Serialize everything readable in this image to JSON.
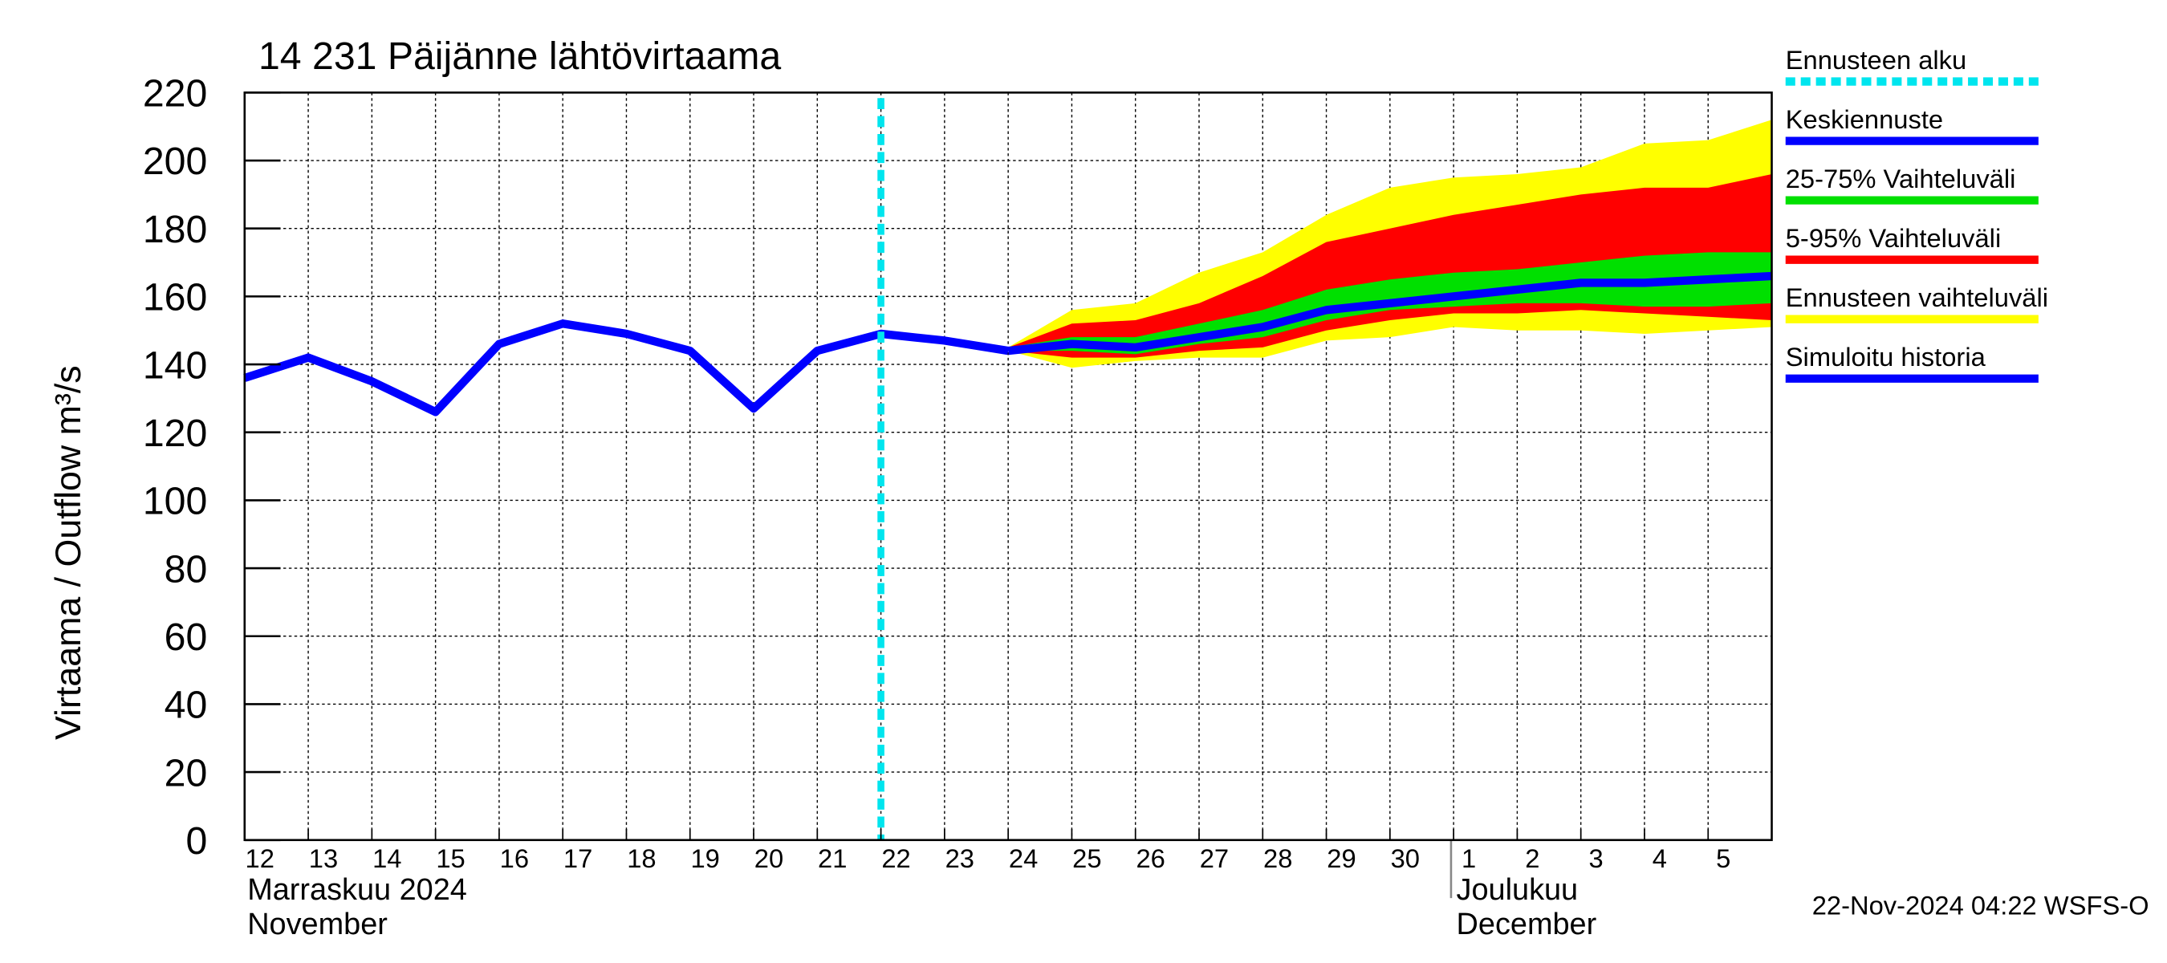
{
  "chart_data": {
    "type": "line",
    "title": "14 231 Päijänne lähtövirtaama",
    "y_label": "Virtaama / Outflow    m³/s",
    "categories": [
      "12",
      "13",
      "14",
      "15",
      "16",
      "17",
      "18",
      "19",
      "20",
      "21",
      "22",
      "23",
      "24",
      "25",
      "26",
      "27",
      "28",
      "29",
      "30",
      "1",
      "2",
      "3",
      "4",
      "5",
      null
    ],
    "month_labels": [
      {
        "index": 0,
        "lines": [
          "Marraskuu 2024",
          "November"
        ]
      },
      {
        "index": 19,
        "lines": [
          "Joulukuu",
          "December"
        ]
      }
    ],
    "ylim": [
      0,
      220
    ],
    "yticks": [
      0,
      20,
      40,
      60,
      80,
      100,
      120,
      140,
      160,
      180,
      200,
      220
    ],
    "grid": true,
    "forecast_start": {
      "name": "Ennusteen alku",
      "index": 10,
      "color": "#00e5ee"
    },
    "series": [
      {
        "name": "Keskiennuste",
        "color": "#0000ff",
        "values": [
          null,
          null,
          null,
          null,
          null,
          null,
          null,
          null,
          null,
          null,
          null,
          null,
          144,
          146,
          145,
          148,
          151,
          156,
          158,
          160,
          162,
          164,
          164,
          165,
          166
        ]
      },
      {
        "name": "Simuloitu historia",
        "color": "#0000ff",
        "values": [
          136,
          142,
          135,
          126,
          146,
          152,
          149,
          144,
          127,
          144,
          149,
          147,
          144,
          null,
          null,
          null,
          null,
          null,
          null,
          null,
          null,
          null,
          null,
          null,
          null
        ]
      }
    ],
    "bands": [
      {
        "name": "25-75% Vaihteluväli",
        "color": "#00e000",
        "upper": [
          null,
          null,
          null,
          null,
          null,
          null,
          null,
          null,
          null,
          null,
          null,
          null,
          145,
          148,
          148,
          152,
          156,
          162,
          165,
          167,
          168,
          170,
          172,
          173,
          173
        ],
        "lower": [
          null,
          null,
          null,
          null,
          null,
          null,
          null,
          null,
          null,
          null,
          null,
          null,
          144,
          144,
          143,
          146,
          148,
          153,
          156,
          157,
          158,
          158,
          157,
          157,
          158
        ]
      },
      {
        "name": "5-95% Vaihteluväli",
        "color": "#ff0000",
        "upper": [
          null,
          null,
          null,
          null,
          null,
          null,
          null,
          null,
          null,
          null,
          149,
          147,
          145,
          152,
          153,
          158,
          166,
          176,
          180,
          184,
          187,
          190,
          192,
          192,
          196
        ],
        "lower": [
          null,
          null,
          null,
          null,
          null,
          null,
          null,
          null,
          null,
          null,
          149,
          146,
          144,
          142,
          142,
          144,
          145,
          150,
          153,
          155,
          155,
          156,
          155,
          154,
          153
        ]
      },
      {
        "name": "Ennusteen vaihteluväli",
        "color": "#ffff00",
        "upper": [
          null,
          null,
          null,
          null,
          null,
          null,
          null,
          null,
          null,
          null,
          150,
          147,
          145,
          156,
          158,
          167,
          173,
          184,
          192,
          195,
          196,
          198,
          205,
          206,
          212
        ],
        "lower": [
          null,
          null,
          null,
          null,
          null,
          null,
          null,
          null,
          null,
          null,
          148,
          146,
          144,
          139,
          141,
          142,
          142,
          147,
          148,
          151,
          150,
          150,
          149,
          150,
          151
        ]
      }
    ],
    "footer": "22-Nov-2024 04:22 WSFS-O"
  }
}
